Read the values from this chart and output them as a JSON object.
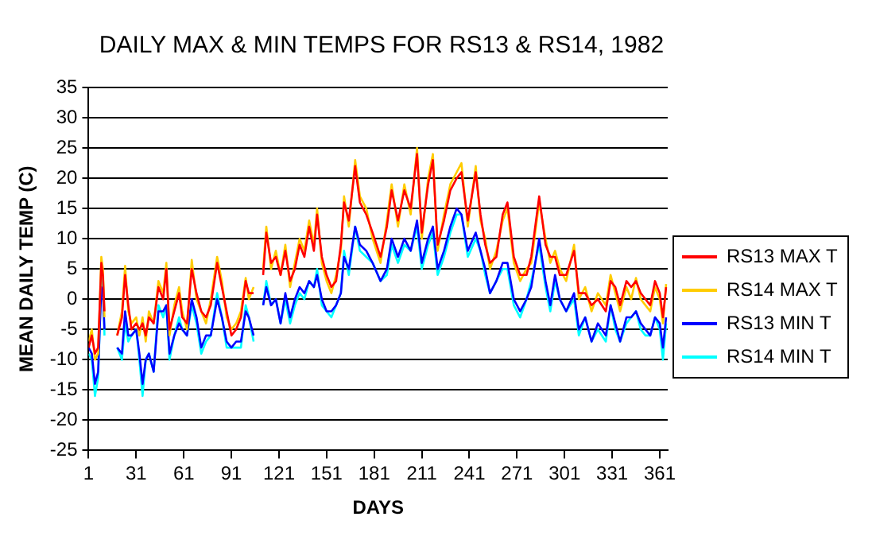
{
  "chart_data": {
    "type": "line",
    "title": "DAILY MAX & MIN TEMPS FOR RS13 & RS14, 1982",
    "xlabel": "DAYS",
    "ylabel": "MEAN DAILY TEMP (C)",
    "x": [
      1,
      3,
      5,
      7,
      9,
      10,
      11,
      15,
      19,
      22,
      24,
      26,
      28,
      31,
      33,
      35,
      37,
      39,
      42,
      45,
      48,
      50,
      52,
      55,
      58,
      60,
      63,
      66,
      69,
      72,
      75,
      78,
      82,
      85,
      88,
      91,
      94,
      97,
      100,
      102,
      105,
      108,
      111,
      113,
      116,
      119,
      122,
      125,
      128,
      131,
      134,
      137,
      140,
      143,
      145,
      148,
      151,
      154,
      157,
      160,
      162,
      165,
      169,
      172,
      176,
      180,
      185,
      189,
      192,
      196,
      200,
      204,
      208,
      211,
      215,
      218,
      221,
      225,
      229,
      233,
      236,
      240,
      245,
      248,
      251,
      254,
      258,
      262,
      265,
      269,
      273,
      277,
      280,
      285,
      289,
      292,
      295,
      298,
      302,
      307,
      310,
      314,
      318,
      322,
      327,
      330,
      333,
      336,
      340,
      343,
      346,
      349,
      352,
      355,
      358,
      361,
      363,
      365
    ],
    "xlim": [
      1,
      366
    ],
    "xticks": [
      1,
      31,
      61,
      91,
      121,
      151,
      181,
      211,
      241,
      271,
      301,
      331,
      361
    ],
    "ylim": [
      -25,
      35
    ],
    "yticks": [
      -25,
      -20,
      -15,
      -10,
      -5,
      0,
      5,
      10,
      15,
      20,
      25,
      30,
      35
    ],
    "grid": "y",
    "legend": "right",
    "marker": "none",
    "line_style": "solid",
    "series": [
      {
        "name": "RS13 MAX T",
        "color": "#ff0000",
        "values": [
          -8,
          -6,
          -9,
          -8,
          6,
          4,
          -2,
          null,
          -6,
          -3,
          4,
          -1,
          -5,
          -4,
          -5,
          -4,
          -6,
          -3,
          -4,
          2,
          0,
          5,
          -5,
          -2,
          1,
          -3,
          -4,
          5,
          1,
          -2,
          -3,
          -1,
          6,
          2,
          -2,
          -6,
          -5,
          -3,
          3,
          1,
          1,
          null,
          4,
          11,
          6,
          7,
          4,
          8,
          3,
          5,
          9,
          7,
          12,
          8,
          14,
          7,
          4,
          2,
          3,
          9,
          16,
          13,
          22,
          16,
          14,
          11,
          7,
          12,
          18,
          13,
          18,
          15,
          24,
          11,
          19,
          23,
          9,
          13,
          18,
          20,
          21,
          13,
          21,
          14,
          9,
          6,
          7,
          14,
          16,
          7,
          4,
          4,
          7,
          17,
          9,
          7,
          7,
          4,
          4,
          8,
          1,
          1,
          -1,
          0,
          -2,
          3,
          2,
          -1,
          3,
          2,
          3,
          1,
          0,
          -1,
          3,
          1,
          -3,
          2
        ]
      },
      {
        "name": "RS14 MAX T",
        "color": "#ffcc00",
        "values": [
          -7,
          -5,
          -10,
          -9,
          7,
          5,
          -3,
          null,
          -6,
          -2,
          5.5,
          -2,
          -4,
          -3,
          -6,
          -3,
          -7,
          -2,
          -4,
          3,
          1,
          6,
          -6,
          -1,
          2,
          -2,
          -5,
          6.5,
          0,
          -2,
          -4,
          0,
          7,
          3,
          -3,
          -5,
          -4,
          -2,
          3.5,
          0,
          2,
          null,
          5,
          12,
          5,
          8,
          4,
          9,
          2,
          6,
          10,
          8,
          13,
          9,
          15,
          6,
          3,
          1,
          4,
          8,
          17,
          12,
          23,
          17,
          15,
          10,
          6,
          13,
          19,
          12,
          19,
          14,
          25,
          10,
          20,
          24,
          8,
          14,
          19,
          21,
          22.5,
          12,
          22,
          13,
          10,
          5,
          8,
          13,
          15,
          6,
          3,
          5,
          6,
          16,
          10,
          6,
          8,
          5,
          3,
          9,
          0,
          2,
          -2,
          1,
          -1,
          4,
          1,
          -2,
          2,
          0,
          3.5,
          0,
          -1,
          -2,
          2,
          0,
          -4,
          2.5
        ]
      },
      {
        "name": "RS13 MIN T",
        "color": "#0000ff",
        "values": [
          -8,
          -9,
          -14,
          -12,
          2,
          1,
          -5,
          null,
          -8,
          -9,
          -2,
          -6,
          -6,
          -5,
          -9,
          -14,
          -10,
          -9,
          -12,
          -2,
          -2,
          -1,
          -9,
          -6,
          -4,
          -5,
          -6,
          0,
          -3,
          -8,
          -6,
          -6,
          0,
          -3,
          -7,
          -8,
          -7,
          -7,
          -2,
          -3,
          -6,
          null,
          -1,
          2,
          -1,
          0,
          -4,
          1,
          -3,
          0,
          2,
          1,
          3,
          2,
          4,
          0,
          -2,
          -2,
          -1,
          1,
          7,
          5,
          12,
          9,
          8,
          6,
          3,
          5,
          10,
          7,
          10,
          8,
          13,
          6,
          10,
          12,
          5,
          8,
          12,
          15,
          14,
          8,
          11,
          8,
          5,
          1,
          3,
          6,
          6,
          0,
          -2,
          0,
          2,
          10,
          3,
          -1,
          4,
          0,
          -2,
          1,
          -5,
          -3,
          -7,
          -4,
          -6,
          -1,
          -4,
          -7,
          -3,
          -3,
          -2,
          -4,
          -5,
          -6,
          -3,
          -4,
          -8,
          -3
        ]
      },
      {
        "name": "RS14 MIN T",
        "color": "#00ffff",
        "values": [
          -9,
          -10,
          -16,
          -13,
          3.5,
          3,
          -6,
          null,
          -8,
          -10,
          -4,
          -7,
          -6,
          -5,
          -10,
          -16,
          -10,
          -9,
          -12,
          -1,
          -3,
          -1,
          -10,
          -6,
          -3,
          -5,
          -6,
          -1,
          -4,
          -9,
          -7,
          -6,
          1,
          -3,
          -8,
          -8,
          -8,
          -8,
          -1,
          -3,
          -7,
          null,
          -1,
          3,
          -1,
          0,
          -4,
          0,
          -4,
          -1,
          1,
          0,
          3,
          2,
          5,
          -1,
          -2,
          -3,
          -1,
          1,
          8,
          4,
          12,
          8,
          7,
          6,
          3,
          4,
          9,
          6,
          9,
          8,
          12,
          5,
          9,
          11,
          4,
          7,
          11,
          14,
          14,
          7,
          10,
          8,
          4,
          1,
          3,
          5,
          5,
          -1,
          -3,
          0,
          3,
          9,
          2,
          -2,
          3,
          0,
          -2,
          0,
          -6,
          -3,
          -7,
          -5,
          -7,
          -1,
          -5,
          -7,
          -4,
          -3,
          -2,
          -5,
          -6,
          -6,
          -3,
          -5,
          -10,
          -4
        ]
      }
    ]
  }
}
